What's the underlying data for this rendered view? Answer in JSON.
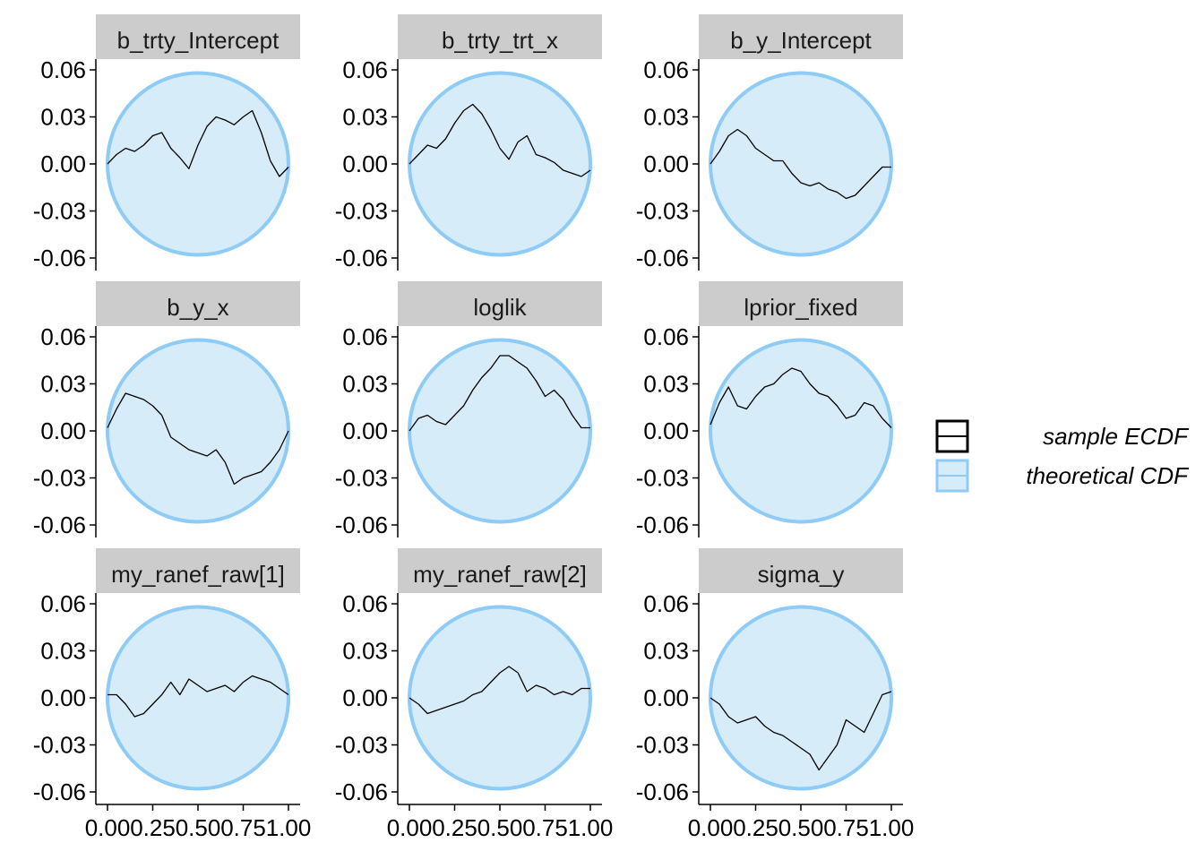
{
  "colors": {
    "ecdf_line": "#000000",
    "cdf_band_fill": "#d6ecf8",
    "cdf_band_stroke": "#8ecbf5",
    "strip_fill": "#cccccc",
    "axis": "#000000"
  },
  "legend": {
    "position": "right",
    "items": [
      {
        "label": "sample ECDF",
        "key": "ecdf"
      },
      {
        "label": "theoretical CDF",
        "key": "cdf"
      }
    ]
  },
  "chart_data": {
    "type": "line",
    "layout": {
      "rows": 3,
      "cols": 3
    },
    "title": "",
    "xlabel": "",
    "ylabel": "",
    "xlim": [
      0,
      1
    ],
    "ylim": [
      -0.06,
      0.06
    ],
    "x_ticks": [
      0,
      0.25,
      0.5,
      0.75,
      1
    ],
    "x_tick_labels": [
      "0.00",
      "0.25",
      "0.50",
      "0.75",
      "1.00"
    ],
    "y_ticks": [
      -0.06,
      -0.03,
      0,
      0.03,
      0.06
    ],
    "y_tick_labels": [
      "-0.06",
      "-0.03",
      "0.00",
      "0.03",
      "0.06"
    ],
    "band_halfwidth_at_center": 0.058,
    "grid": false,
    "panels": [
      {
        "label": "b_trty_Intercept",
        "x": [
          0,
          0.05,
          0.1,
          0.15,
          0.2,
          0.25,
          0.3,
          0.35,
          0.4,
          0.45,
          0.5,
          0.55,
          0.6,
          0.65,
          0.7,
          0.75,
          0.8,
          0.85,
          0.9,
          0.95,
          1
        ],
        "y": [
          0,
          0.006,
          0.01,
          0.008,
          0.012,
          0.018,
          0.02,
          0.01,
          0.004,
          -0.003,
          0.012,
          0.024,
          0.03,
          0.028,
          0.025,
          0.03,
          0.034,
          0.02,
          0.002,
          -0.008,
          -0.002
        ]
      },
      {
        "label": "b_trty_trt_x",
        "x": [
          0,
          0.05,
          0.1,
          0.15,
          0.2,
          0.25,
          0.3,
          0.35,
          0.4,
          0.45,
          0.5,
          0.55,
          0.6,
          0.65,
          0.7,
          0.75,
          0.8,
          0.85,
          0.9,
          0.95,
          1
        ],
        "y": [
          0,
          0.006,
          0.012,
          0.01,
          0.016,
          0.026,
          0.034,
          0.038,
          0.032,
          0.022,
          0.01,
          0.003,
          0.014,
          0.018,
          0.006,
          0.004,
          0.001,
          -0.004,
          -0.006,
          -0.008,
          -0.004
        ]
      },
      {
        "label": "b_y_Intercept",
        "x": [
          0,
          0.05,
          0.1,
          0.15,
          0.2,
          0.25,
          0.3,
          0.35,
          0.4,
          0.45,
          0.5,
          0.55,
          0.6,
          0.65,
          0.7,
          0.75,
          0.8,
          0.85,
          0.9,
          0.95,
          1
        ],
        "y": [
          0,
          0.008,
          0.018,
          0.022,
          0.018,
          0.01,
          0.006,
          0.002,
          0.002,
          -0.006,
          -0.012,
          -0.014,
          -0.012,
          -0.016,
          -0.018,
          -0.022,
          -0.02,
          -0.014,
          -0.008,
          -0.002,
          -0.002
        ]
      },
      {
        "label": "b_y_x",
        "x": [
          0,
          0.05,
          0.1,
          0.15,
          0.2,
          0.25,
          0.3,
          0.35,
          0.4,
          0.45,
          0.5,
          0.55,
          0.6,
          0.65,
          0.7,
          0.75,
          0.8,
          0.85,
          0.9,
          0.95,
          1
        ],
        "y": [
          0.002,
          0.014,
          0.024,
          0.022,
          0.02,
          0.016,
          0.01,
          -0.004,
          -0.008,
          -0.012,
          -0.014,
          -0.016,
          -0.012,
          -0.02,
          -0.034,
          -0.03,
          -0.028,
          -0.026,
          -0.02,
          -0.012,
          0
        ]
      },
      {
        "label": "loglik",
        "x": [
          0,
          0.05,
          0.1,
          0.15,
          0.2,
          0.25,
          0.3,
          0.35,
          0.4,
          0.45,
          0.5,
          0.55,
          0.6,
          0.65,
          0.7,
          0.75,
          0.8,
          0.85,
          0.9,
          0.95,
          1
        ],
        "y": [
          0,
          0.008,
          0.01,
          0.006,
          0.004,
          0.01,
          0.016,
          0.026,
          0.034,
          0.04,
          0.048,
          0.048,
          0.044,
          0.04,
          0.032,
          0.022,
          0.026,
          0.02,
          0.01,
          0.002,
          0.002
        ]
      },
      {
        "label": "lprior_fixed",
        "x": [
          0,
          0.05,
          0.1,
          0.15,
          0.2,
          0.25,
          0.3,
          0.35,
          0.4,
          0.45,
          0.5,
          0.55,
          0.6,
          0.65,
          0.7,
          0.75,
          0.8,
          0.85,
          0.9,
          0.95,
          1
        ],
        "y": [
          0.004,
          0.018,
          0.028,
          0.016,
          0.014,
          0.022,
          0.028,
          0.03,
          0.036,
          0.04,
          0.038,
          0.03,
          0.024,
          0.022,
          0.016,
          0.008,
          0.01,
          0.018,
          0.016,
          0.008,
          0.002
        ]
      },
      {
        "label": "my_ranef_raw[1]",
        "x": [
          0,
          0.05,
          0.1,
          0.15,
          0.2,
          0.25,
          0.3,
          0.35,
          0.4,
          0.45,
          0.5,
          0.55,
          0.6,
          0.65,
          0.7,
          0.75,
          0.8,
          0.85,
          0.9,
          0.95,
          1
        ],
        "y": [
          0.002,
          0.002,
          -0.004,
          -0.012,
          -0.01,
          -0.004,
          0.002,
          0.01,
          0.002,
          0.012,
          0.008,
          0.004,
          0.006,
          0.008,
          0.004,
          0.01,
          0.014,
          0.012,
          0.01,
          0.006,
          0.002
        ]
      },
      {
        "label": "my_ranef_raw[2]",
        "x": [
          0,
          0.05,
          0.1,
          0.15,
          0.2,
          0.25,
          0.3,
          0.35,
          0.4,
          0.45,
          0.5,
          0.55,
          0.6,
          0.65,
          0.7,
          0.75,
          0.8,
          0.85,
          0.9,
          0.95,
          1
        ],
        "y": [
          0,
          -0.004,
          -0.01,
          -0.008,
          -0.006,
          -0.004,
          -0.002,
          0.002,
          0.004,
          0.01,
          0.016,
          0.02,
          0.016,
          0.004,
          0.008,
          0.006,
          0.002,
          0.004,
          0.002,
          0.006,
          0.006
        ]
      },
      {
        "label": "sigma_y",
        "x": [
          0,
          0.05,
          0.1,
          0.15,
          0.2,
          0.25,
          0.3,
          0.35,
          0.4,
          0.45,
          0.5,
          0.55,
          0.6,
          0.65,
          0.7,
          0.75,
          0.8,
          0.85,
          0.9,
          0.95,
          1
        ],
        "y": [
          0,
          -0.004,
          -0.012,
          -0.016,
          -0.014,
          -0.012,
          -0.018,
          -0.022,
          -0.024,
          -0.028,
          -0.032,
          -0.036,
          -0.046,
          -0.038,
          -0.03,
          -0.014,
          -0.018,
          -0.022,
          -0.01,
          0.002,
          0.004
        ]
      }
    ]
  }
}
